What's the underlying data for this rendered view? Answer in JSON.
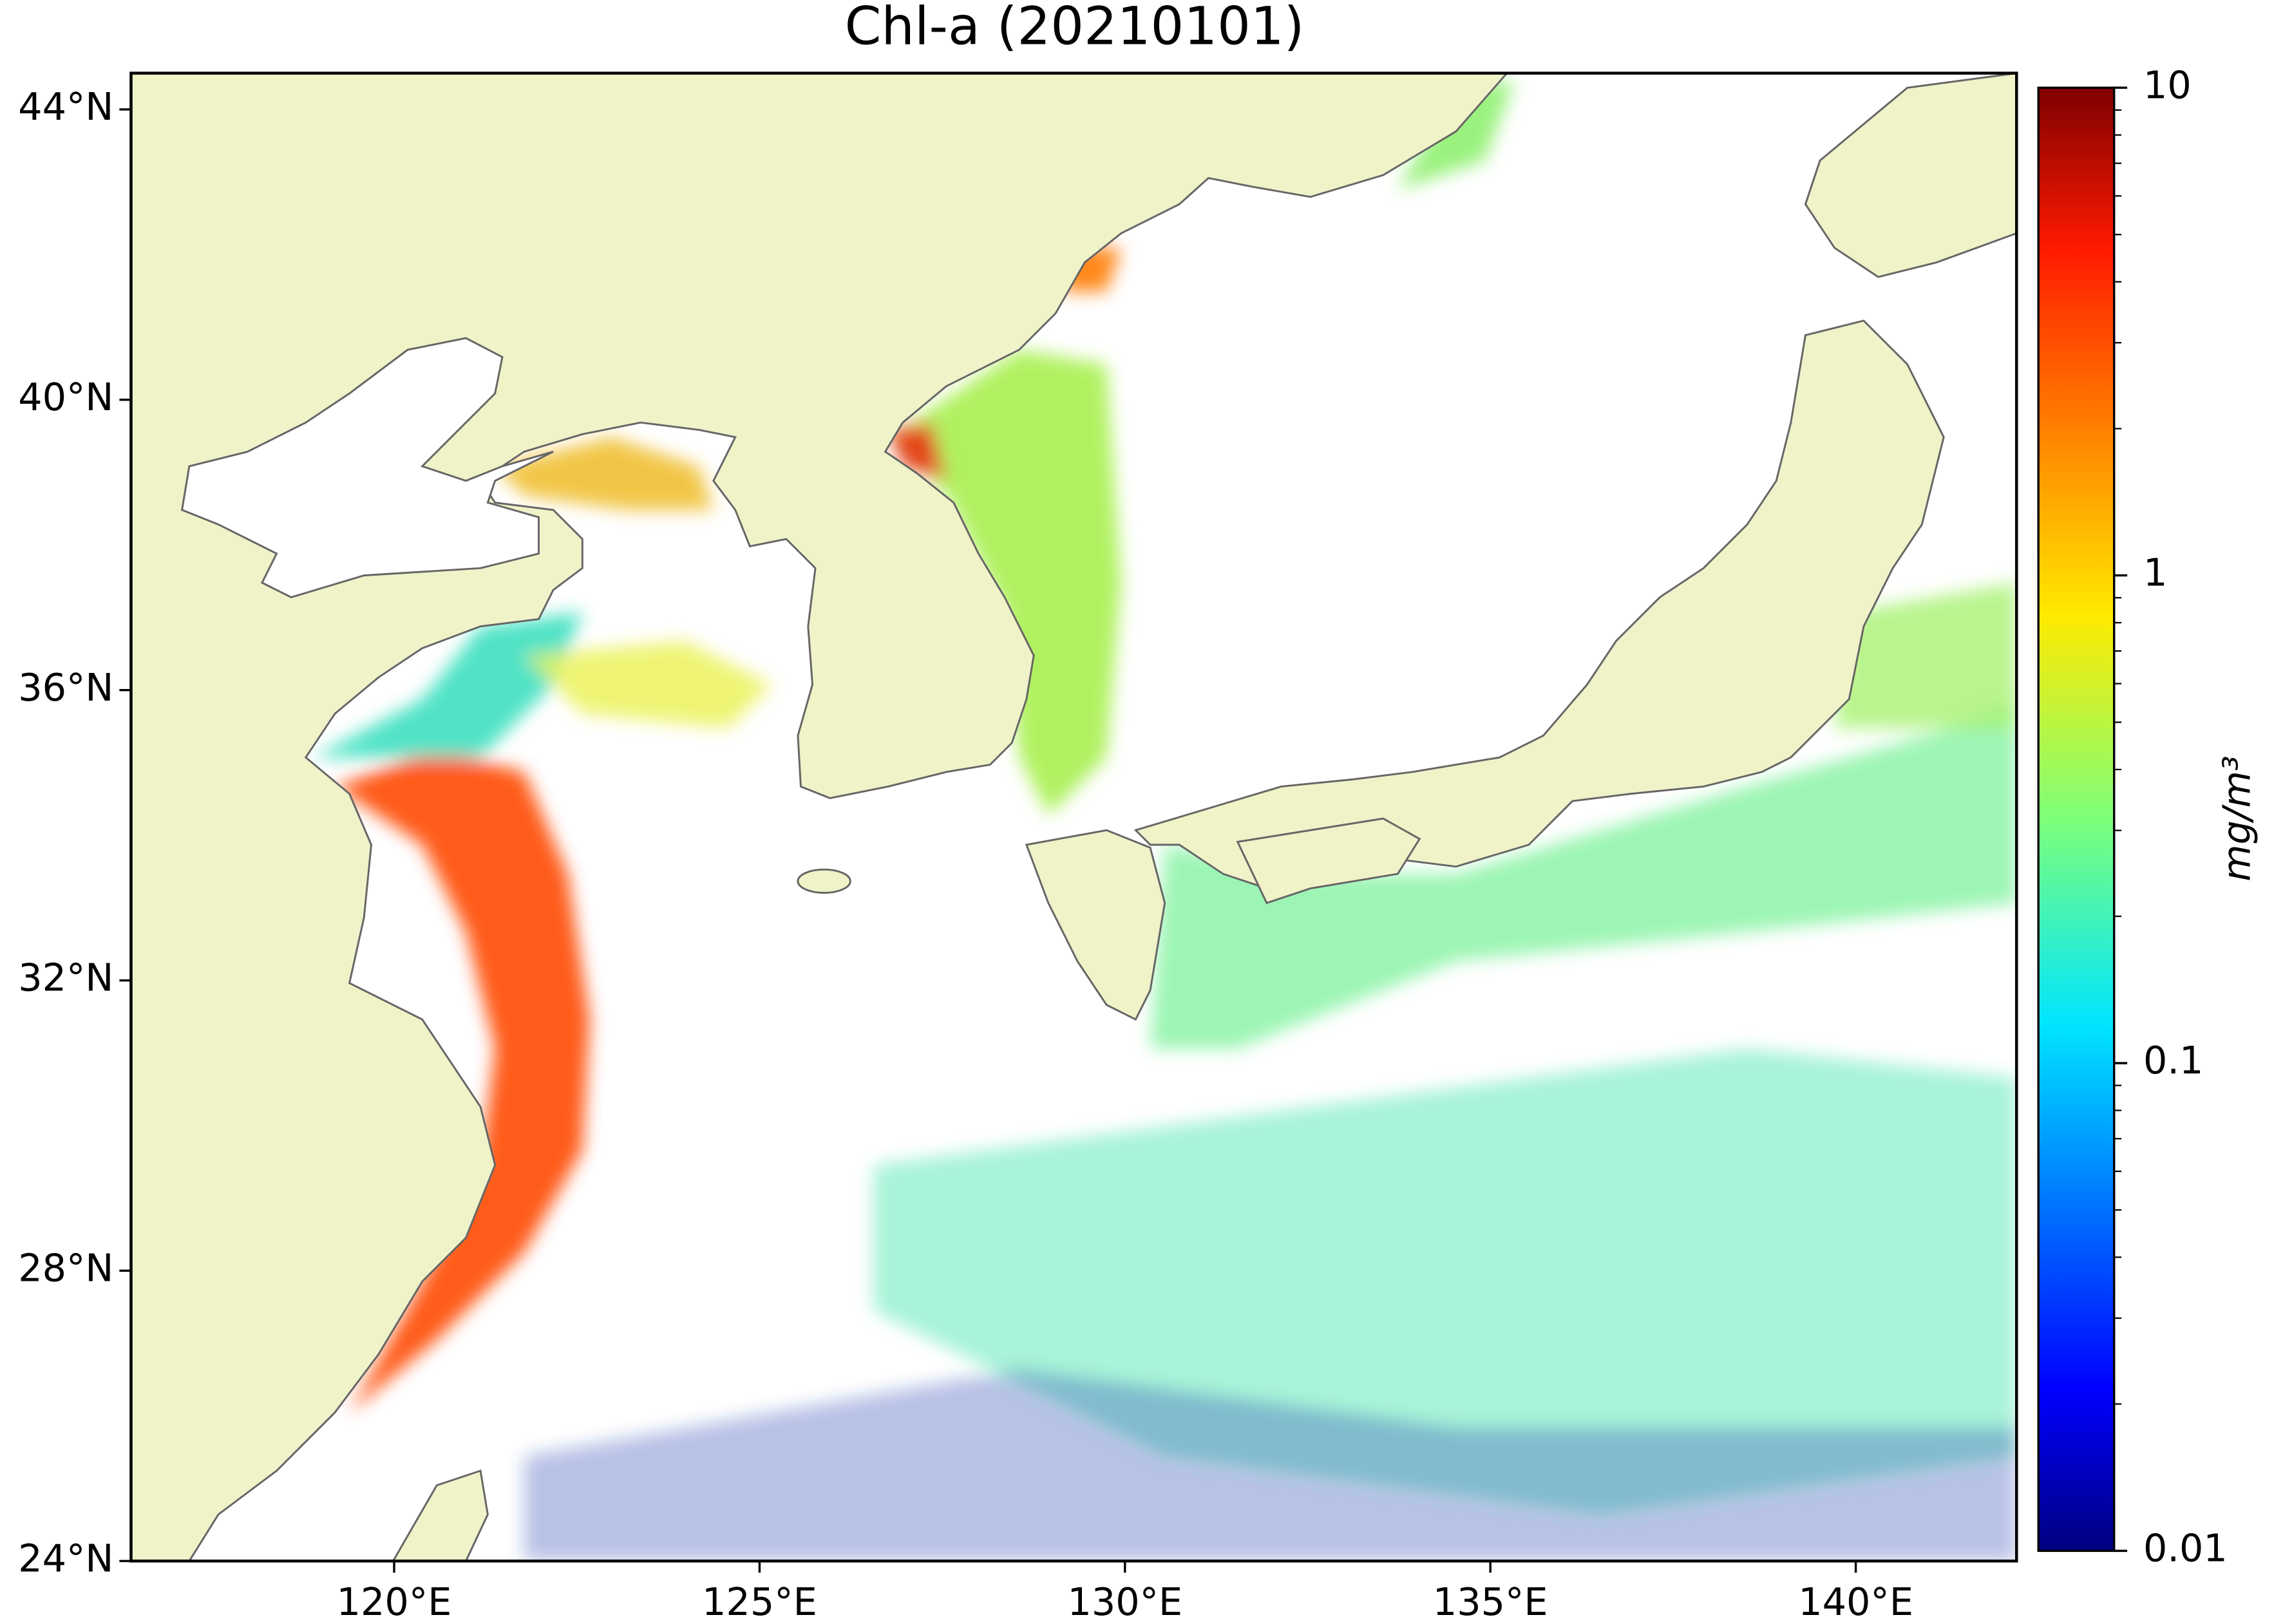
{
  "chart_data": {
    "type": "map",
    "title": "Chl-a (20210101)",
    "xlim": [
      116.4,
      142.2
    ],
    "ylim": [
      24,
      44.5
    ],
    "xticks": [
      {
        "value": 120,
        "label": "120°E"
      },
      {
        "value": 125,
        "label": "125°E"
      },
      {
        "value": 130,
        "label": "130°E"
      },
      {
        "value": 135,
        "label": "135°E"
      },
      {
        "value": 140,
        "label": "140°E"
      }
    ],
    "yticks": [
      {
        "value": 24,
        "label": "24°N"
      },
      {
        "value": 28,
        "label": "28°N"
      },
      {
        "value": 32,
        "label": "32°N"
      },
      {
        "value": 36,
        "label": "36°N"
      },
      {
        "value": 40,
        "label": "40°N"
      },
      {
        "value": 44,
        "label": "44°N"
      }
    ],
    "colorbar": {
      "label": "mg/m³",
      "log_scale": true,
      "clim": [
        0.01,
        10
      ],
      "ticks": [
        0.01,
        0.1,
        1,
        10
      ],
      "colormap": "jet"
    }
  }
}
